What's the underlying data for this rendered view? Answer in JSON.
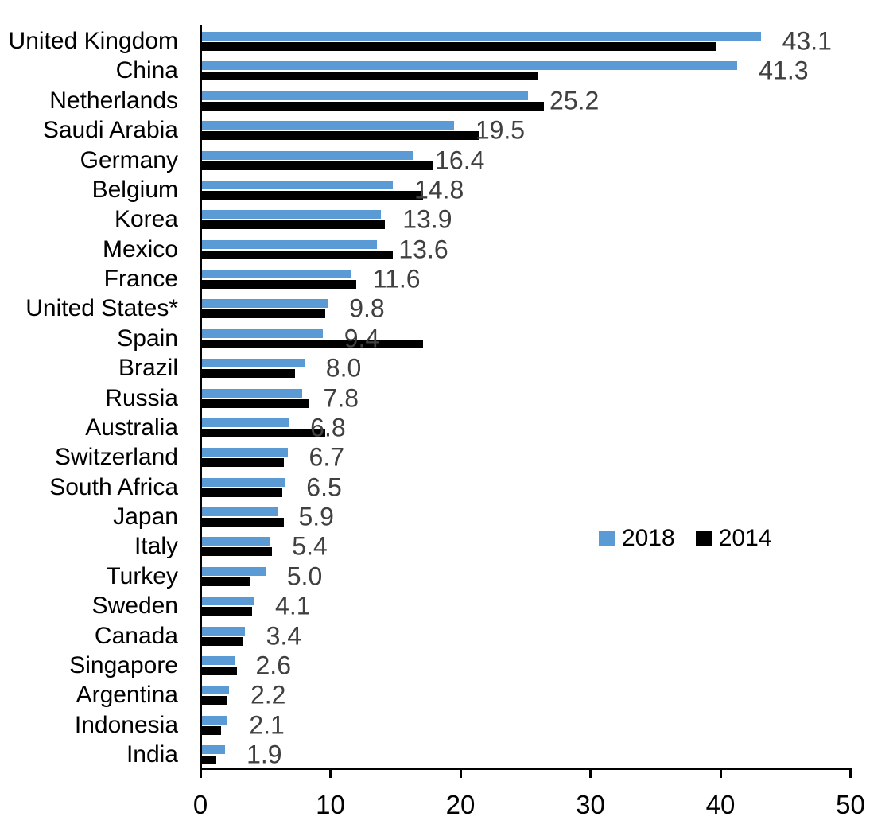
{
  "chart_data": {
    "type": "bar",
    "orientation": "horizontal",
    "title": "",
    "xlabel": "",
    "ylabel": "",
    "xlim": [
      0,
      50
    ],
    "x_ticks": [
      0,
      10,
      20,
      30,
      40,
      50
    ],
    "grid": false,
    "legend_position": "middle-right",
    "categories": [
      "United Kingdom",
      "China",
      "Netherlands",
      "Saudi Arabia",
      "Germany",
      "Belgium",
      "Korea",
      "Mexico",
      "France",
      "United States*",
      "Spain",
      "Brazil",
      "Russia",
      "Australia",
      "Switzerland",
      "South Africa",
      "Japan",
      "Italy",
      "Turkey",
      "Sweden",
      "Canada",
      "Singapore",
      "Argentina",
      "Indonesia",
      "India"
    ],
    "series": [
      {
        "name": "2018",
        "color": "#5B9BD5",
        "data_labels_visible": true,
        "values": [
          43.1,
          41.3,
          25.2,
          19.5,
          16.4,
          14.8,
          13.9,
          13.6,
          11.6,
          9.8,
          9.4,
          8.0,
          7.8,
          6.8,
          6.7,
          6.5,
          5.9,
          5.4,
          5.0,
          4.1,
          3.4,
          2.6,
          2.2,
          2.1,
          1.9
        ]
      },
      {
        "name": "2014",
        "color": "#000000",
        "data_labels_visible": false,
        "values": [
          39.6,
          25.9,
          26.4,
          21.4,
          17.9,
          17.1,
          14.2,
          14.8,
          12.0,
          9.6,
          17.1,
          7.3,
          8.3,
          9.6,
          6.4,
          6.3,
          6.4,
          5.5,
          3.8,
          4.0,
          3.3,
          2.8,
          2.1,
          1.6,
          1.2
        ]
      }
    ],
    "data_label_color": "#404040",
    "axis_color": "#000000"
  }
}
